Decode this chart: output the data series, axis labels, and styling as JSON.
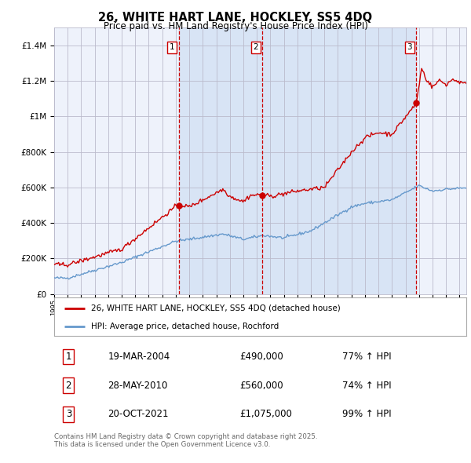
{
  "title": "26, WHITE HART LANE, HOCKLEY, SS5 4DQ",
  "subtitle": "Price paid vs. HM Land Registry's House Price Index (HPI)",
  "legend_line1": "26, WHITE HART LANE, HOCKLEY, SS5 4DQ (detached house)",
  "legend_line2": "HPI: Average price, detached house, Rochford",
  "transactions": [
    {
      "num": 1,
      "date": "19-MAR-2004",
      "price": 490000,
      "hpi_pct": "77% ↑ HPI",
      "x_year": 2004.21
    },
    {
      "num": 2,
      "date": "28-MAY-2010",
      "price": 560000,
      "hpi_pct": "74% ↑ HPI",
      "x_year": 2010.41
    },
    {
      "num": 3,
      "date": "20-OCT-2021",
      "price": 1075000,
      "hpi_pct": "99% ↑ HPI",
      "x_year": 2021.8
    }
  ],
  "footnote": "Contains HM Land Registry data © Crown copyright and database right 2025.\nThis data is licensed under the Open Government Licence v3.0.",
  "red_color": "#cc0000",
  "blue_color": "#6699cc",
  "background_color": "#ffffff",
  "plot_bg_color": "#eef2fb",
  "shading_color": "#d8e4f5",
  "grid_color": "#bbbbcc",
  "ylim": [
    0,
    1500000
  ],
  "xlim_start": 1995,
  "xlim_end": 2025.5
}
